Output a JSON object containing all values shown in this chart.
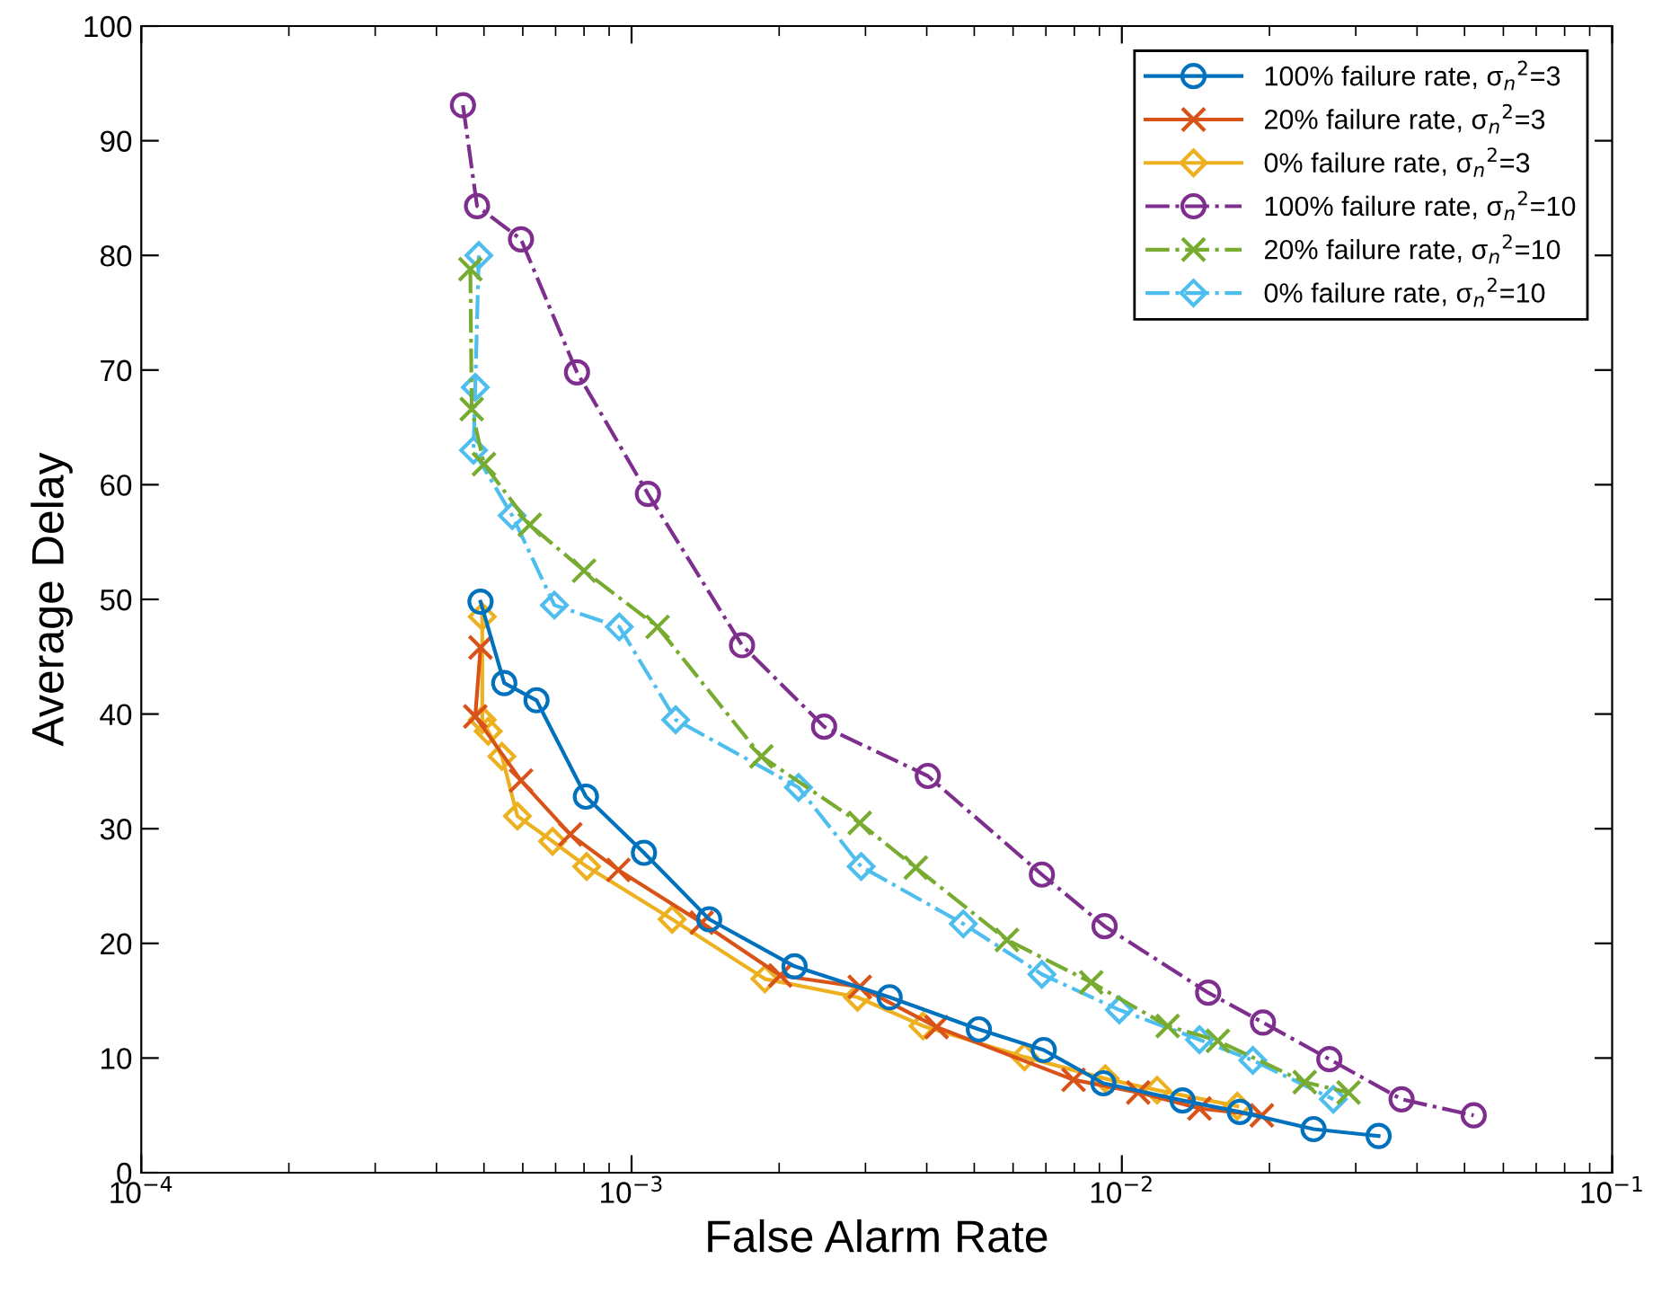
{
  "chart_data": {
    "type": "line",
    "xlabel": "False Alarm Rate",
    "ylabel": "Average Delay",
    "log": "x",
    "xlim": [
      0.0001,
      0.1
    ],
    "xticks": [
      {
        "value": 0.0001,
        "label": "10$^{−4}$"
      },
      {
        "value": 0.001,
        "label": "10$^{−3}$"
      },
      {
        "value": 0.01,
        "label": "10$^{−2}$"
      },
      {
        "value": 0.1,
        "label": "10$^{−1}$"
      }
    ],
    "ylim": [
      0,
      100
    ],
    "yticks": [
      0,
      10,
      20,
      30,
      40,
      50,
      60,
      70,
      80,
      90,
      100
    ],
    "grid": false,
    "legend": "top right",
    "series": [
      {
        "name": "100% failure rate, σ$_{n}$$^{2}$=3",
        "color": "#0072bd",
        "marker": "circle",
        "line_style": "solid",
        "x": [
          0.000492,
          0.00055,
          0.00064,
          0.000807,
          0.00106,
          0.00144,
          0.00215,
          0.00336,
          0.00511,
          0.00693,
          0.00917,
          0.0133,
          0.0174,
          0.0246,
          0.0334
        ],
        "values": [
          49.8,
          42.7,
          41.2,
          32.8,
          27.9,
          22.1,
          18.0,
          15.3,
          12.5,
          10.7,
          7.8,
          6.3,
          5.3,
          3.8,
          3.2
        ]
      },
      {
        "name": "20% failure rate, σ$_{n}$$^{2}$=3",
        "color": "#d95319",
        "marker": "cross",
        "line_style": "solid",
        "x": [
          0.000492,
          0.00048,
          0.000595,
          0.00075,
          0.00094,
          0.00139,
          0.00201,
          0.00292,
          0.00419,
          0.00797,
          0.0108,
          0.0144,
          0.0193
        ],
        "values": [
          45.8,
          39.8,
          34.2,
          29.5,
          26.4,
          21.8,
          17.2,
          16.2,
          12.7,
          8.1,
          7.0,
          5.6,
          5.0
        ]
      },
      {
        "name": "0% failure rate, σ$_{n}$$^{2}$=3",
        "color": "#edb120",
        "marker": "diamond",
        "line_style": "solid",
        "x": [
          0.000496,
          0.000496,
          0.00051,
          0.000544,
          0.000585,
          0.00069,
          0.00081,
          0.00121,
          0.00187,
          0.00289,
          0.00393,
          0.00633,
          0.00925,
          0.0118,
          0.0172
        ],
        "values": [
          48.5,
          39.5,
          38.5,
          36.3,
          31.1,
          28.9,
          26.7,
          22.1,
          16.9,
          15.3,
          12.8,
          10.1,
          8.2,
          7.2,
          5.8
        ]
      },
      {
        "name": "100% failure rate, σ$_{n}$$^{2}$=10",
        "color": "#7e2f8e",
        "marker": "circle",
        "line_style": "dashdot",
        "x": [
          0.000453,
          0.000484,
          0.000595,
          0.000774,
          0.00108,
          0.00168,
          0.00247,
          0.00402,
          0.00687,
          0.00922,
          0.015,
          0.0194,
          0.0265,
          0.0372,
          0.0522
        ],
        "values": [
          93.1,
          84.3,
          81.4,
          69.8,
          59.2,
          46.0,
          38.9,
          34.6,
          26.0,
          21.5,
          15.7,
          13.1,
          9.9,
          6.4,
          5.0
        ]
      },
      {
        "name": "20% failure rate, σ$_{n}$$^{2}$=10",
        "color": "#77ac30",
        "marker": "cross",
        "line_style": "dashdot",
        "x": [
          0.000469,
          0.000472,
          0.0005,
          0.00062,
          0.0008,
          0.00113,
          0.00184,
          0.00292,
          0.0038,
          0.00583,
          0.00866,
          0.0124,
          0.0157,
          0.0236,
          0.029
        ],
        "values": [
          78.8,
          66.6,
          61.8,
          56.5,
          52.5,
          47.6,
          36.3,
          30.5,
          26.6,
          20.3,
          16.6,
          12.8,
          11.5,
          7.9,
          7.0
        ]
      },
      {
        "name": "0% failure rate, σ$_{n}$$^{2}$=10",
        "color": "#4dbeee",
        "marker": "diamond",
        "line_style": "dashdot",
        "x": [
          0.000488,
          0.00048,
          0.000476,
          0.000571,
          0.000696,
          0.000944,
          0.00123,
          0.00219,
          0.00294,
          0.00475,
          0.00687,
          0.00988,
          0.0144,
          0.0185,
          0.027
        ],
        "values": [
          80.0,
          68.5,
          63.0,
          57.3,
          49.5,
          47.6,
          39.5,
          33.6,
          26.7,
          21.7,
          17.3,
          14.2,
          11.6,
          9.8,
          6.4
        ]
      }
    ]
  }
}
